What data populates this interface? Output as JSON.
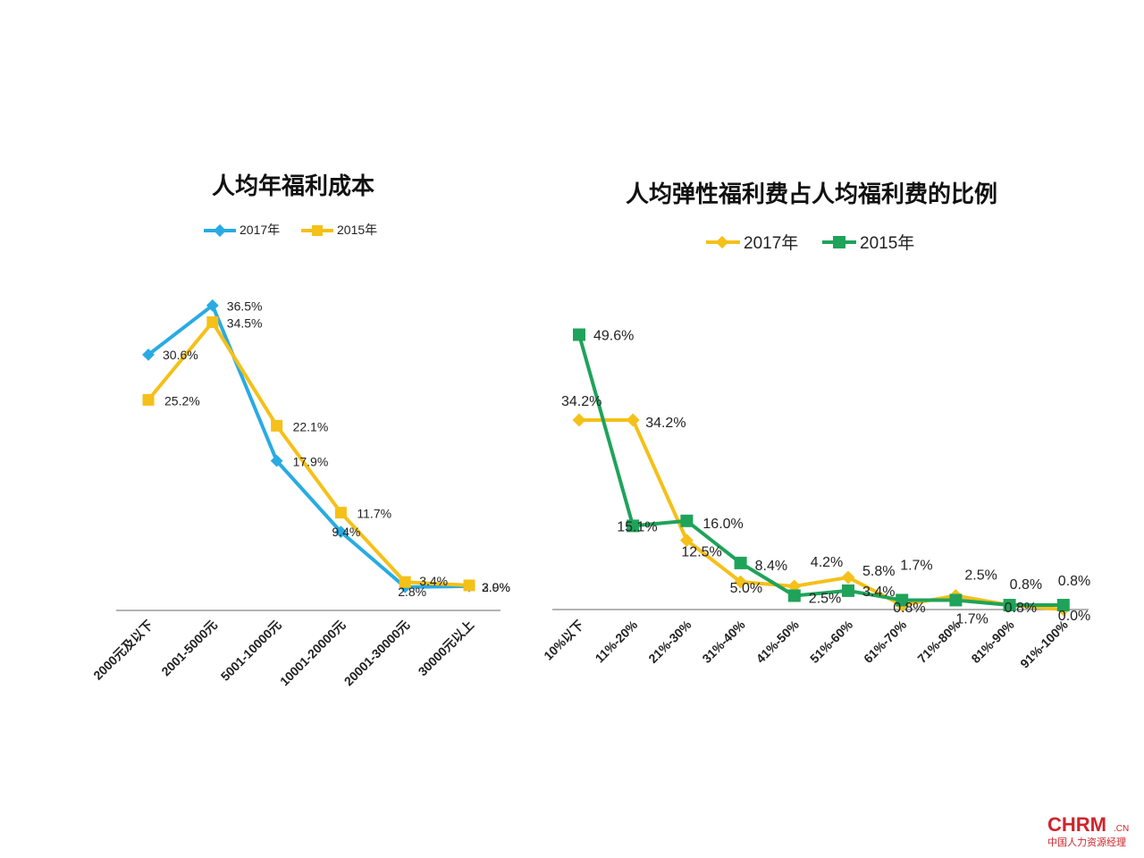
{
  "colors": {
    "blue": "#29ABE2",
    "yellow": "#F5C018",
    "green": "#1FA35A",
    "axis": "#9a9a9a"
  },
  "chart_data": [
    {
      "type": "line",
      "title": "人均年福利成本",
      "categories": [
        "2000元及以下",
        "2001-5000元",
        "5001-10000元",
        "10001-20000元",
        "20001-30000元",
        "30000元以上"
      ],
      "series": [
        {
          "name": "2017年",
          "color": "blue",
          "marker": "diamond",
          "values": [
            30.6,
            36.5,
            17.9,
            9.4,
            2.8,
            2.9
          ],
          "labels": [
            "30.6%",
            "36.5%",
            "17.9%",
            "9.4%",
            "2.8%",
            "2.9%"
          ]
        },
        {
          "name": "2015年",
          "color": "yellow",
          "marker": "square",
          "values": [
            25.2,
            34.5,
            22.1,
            11.7,
            3.4,
            3.0
          ],
          "labels": [
            "25.2%",
            "34.5%",
            "22.1%",
            "11.7%",
            "3.4%",
            "3.0%"
          ]
        }
      ],
      "ylim": [
        0,
        40
      ],
      "legend": "top"
    },
    {
      "type": "line",
      "title": "人均弹性福利费占人均福利费的比例",
      "categories": [
        "10%以下",
        "11%-20%",
        "21%-30%",
        "31%-40%",
        "41%-50%",
        "51%-60%",
        "61%-70%",
        "71%-80%",
        "81%-90%",
        "91%-100%"
      ],
      "series": [
        {
          "name": "2017年",
          "color": "yellow",
          "marker": "diamond",
          "values": [
            34.2,
            34.2,
            12.5,
            5.0,
            4.2,
            5.8,
            0.8,
            2.5,
            0.8,
            0.0
          ],
          "labels": [
            "34.2%",
            "34.2%",
            "12.5%",
            "5.0%",
            "4.2%",
            "5.8%",
            "0.8%",
            "2.5%",
            "0.8%",
            "0.0%"
          ]
        },
        {
          "name": "2015年",
          "color": "green",
          "marker": "square",
          "values": [
            49.6,
            15.1,
            16.0,
            8.4,
            2.5,
            3.4,
            1.7,
            1.7,
            0.8,
            0.8
          ],
          "labels": [
            "49.6%",
            "15.1%",
            "16.0%",
            "8.4%",
            "2.5%",
            "3.4%",
            "1.7%",
            "1.7%",
            "0.8%",
            "0.8%"
          ]
        }
      ],
      "ylim": [
        0,
        55
      ],
      "legend": "top"
    }
  ],
  "logo": {
    "main": "CHRM",
    "suffix": ".CN",
    "sub": "中国人力资源经理"
  }
}
